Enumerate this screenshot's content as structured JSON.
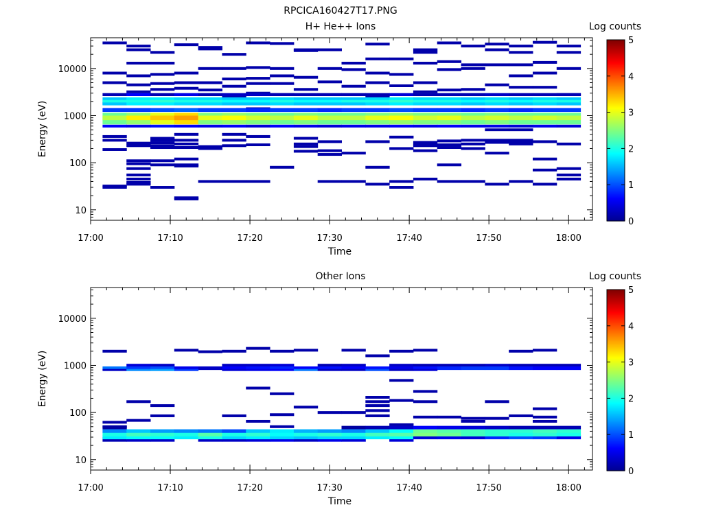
{
  "figure_title": "RPCICA160427T17.PNG",
  "colormap": [
    "#00008f",
    "#0000ff",
    "#0080ff",
    "#00ffff",
    "#80ff80",
    "#ffff00",
    "#ff8000",
    "#ff0000",
    "#800000"
  ],
  "chart_data": [
    {
      "type": "heatmap",
      "title": "H+ He++ Ions",
      "xlabel": "Time",
      "ylabel": "Energy (eV)",
      "xlim": [
        "17:00",
        "18:03"
      ],
      "ylim": [
        6,
        45000
      ],
      "yscale": "log",
      "x_ticks": [
        "17:00",
        "17:10",
        "17:20",
        "17:30",
        "17:40",
        "17:50",
        "18:00"
      ],
      "y_ticks": [
        "10",
        "100",
        "1000",
        "10000"
      ],
      "colorbar": {
        "label": "Log counts",
        "range": [
          0,
          5
        ],
        "ticks": [
          "0",
          "1",
          "2",
          "3",
          "4",
          "5"
        ]
      },
      "time_columns": [
        "17:03",
        "17:06",
        "17:09",
        "17:12",
        "17:15",
        "17:18",
        "17:21",
        "17:24",
        "17:27",
        "17:30",
        "17:33",
        "17:36",
        "17:39",
        "17:42",
        "17:45",
        "17:48",
        "17:51",
        "17:54",
        "17:57",
        "18:00"
      ],
      "bands": [
        {
          "e": [
            650,
            1150
          ],
          "v": [
            2.4,
            2.6,
            3.0,
            3.3,
            2.5,
            2.6,
            2.5,
            2.4,
            2.5,
            2.4,
            2.4,
            2.5,
            2.6,
            2.5,
            2.5,
            2.4,
            2.5,
            2.4,
            2.4,
            2.4
          ]
        },
        {
          "e": [
            800,
            1000
          ],
          "v": [
            2.8,
            3.2,
            3.4,
            3.6,
            3.0,
            3.1,
            2.9,
            2.8,
            3.0,
            2.8,
            2.8,
            3.0,
            3.1,
            2.9,
            3.0,
            2.8,
            2.9,
            2.8,
            2.9,
            2.8
          ]
        },
        {
          "e": [
            1200,
            1450
          ],
          "v": [
            0.9,
            0.9,
            1.0,
            1.1,
            0.9,
            0.9,
            0.8,
            0.9,
            0.9,
            0.8,
            0.9,
            0.9,
            1.0,
            0.9,
            0.9,
            0.8,
            0.9,
            0.8,
            0.9,
            0.9
          ]
        },
        {
          "e": [
            1650,
            2450
          ],
          "v": [
            1.6,
            1.8,
            1.8,
            1.7,
            1.7,
            1.6,
            1.6,
            1.7,
            1.6,
            1.6,
            1.6,
            1.7,
            1.8,
            1.7,
            1.7,
            1.6,
            1.7,
            1.6,
            1.7,
            1.6
          ]
        },
        {
          "e": [
            1900,
            2150
          ],
          "v": [
            2.0,
            2.0,
            2.1,
            2.0,
            2.0,
            1.9,
            1.9,
            2.0,
            1.9,
            1.9,
            2.0,
            2.0,
            2.1,
            2.0,
            2.0,
            1.9,
            2.0,
            1.9,
            2.0,
            2.0
          ]
        },
        {
          "e": [
            560,
            640
          ],
          "v": [
            0.6,
            0.5,
            0.7,
            0.6,
            0.5,
            0.6,
            0.4,
            0.6,
            0.5,
            0.4,
            0.5,
            0.5,
            0.6,
            0.5,
            0.6,
            0.5,
            0.5,
            0.4,
            0.5,
            0.4
          ]
        },
        {
          "e": [
            2600,
            3000
          ],
          "v": [
            0.2,
            0.6,
            0.2,
            0.5,
            0.2,
            0.3,
            0.3,
            0.2,
            0.2,
            0.2,
            0.2,
            0.2,
            0.4,
            0.2,
            0.2,
            0.2,
            0.3,
            0.2,
            0.2,
            0.2
          ]
        }
      ],
      "sparse": [
        {
          "t": 0,
          "e": [
            35000,
            8000,
            5000,
            1800,
            360,
            300,
            190,
            32,
            30
          ]
        },
        {
          "t": 1,
          "e": [
            30000,
            25000,
            13000,
            7000,
            4500,
            3200,
            260,
            230,
            110,
            95,
            75,
            55,
            45,
            38,
            35
          ]
        },
        {
          "t": 2,
          "e": [
            22000,
            13000,
            7500,
            4800,
            3600,
            330,
            300,
            265,
            230,
            210,
            110,
            90,
            30
          ]
        },
        {
          "t": 3,
          "e": [
            32000,
            8000,
            5000,
            3800,
            400,
            300,
            250,
            210,
            120,
            90,
            85,
            18,
            17
          ]
        },
        {
          "t": 4,
          "e": [
            28000,
            26000,
            10000,
            5000,
            3500,
            220,
            200,
            40
          ]
        },
        {
          "t": 5,
          "e": [
            20000,
            10000,
            6000,
            4200,
            2500,
            400,
            300,
            230,
            40
          ]
        },
        {
          "t": 6,
          "e": [
            35000,
            10500,
            6200,
            4800,
            3000,
            1400,
            360,
            240,
            40
          ]
        },
        {
          "t": 7,
          "e": [
            34000,
            10000,
            7000,
            4800,
            2800,
            80
          ]
        },
        {
          "t": 8,
          "e": [
            25000,
            24000,
            6500,
            3600,
            330,
            250,
            220,
            175
          ]
        },
        {
          "t": 9,
          "e": [
            25000,
            10000,
            5200,
            280,
            180,
            150,
            40
          ]
        },
        {
          "t": 10,
          "e": [
            13000,
            9500,
            4200,
            160,
            40
          ]
        },
        {
          "t": 11,
          "e": [
            33000,
            16000,
            8000,
            5000,
            2600,
            280,
            80,
            35
          ]
        },
        {
          "t": 12,
          "e": [
            16000,
            7500,
            4300,
            350,
            200,
            40,
            30
          ]
        },
        {
          "t": 13,
          "e": [
            25000,
            22000,
            13000,
            5000,
            3200,
            270,
            240,
            230,
            180,
            45
          ]
        },
        {
          "t": 14,
          "e": [
            35000,
            14000,
            9500,
            3500,
            290,
            240,
            210,
            90,
            40
          ]
        },
        {
          "t": 15,
          "e": [
            30000,
            12000,
            10000,
            3600,
            300,
            250,
            200,
            40
          ]
        },
        {
          "t": 16,
          "e": [
            33000,
            25000,
            12000,
            4500,
            500,
            300,
            270,
            160,
            35
          ]
        },
        {
          "t": 17,
          "e": [
            30000,
            22000,
            12000,
            7000,
            4000,
            500,
            300,
            270,
            250,
            40
          ]
        },
        {
          "t": 18,
          "e": [
            36000,
            13500,
            8000,
            4000,
            280,
            120,
            70,
            35
          ]
        },
        {
          "t": 19,
          "e": [
            30000,
            22000,
            10000,
            2800,
            250,
            75,
            55,
            45
          ]
        }
      ]
    },
    {
      "type": "heatmap",
      "title": "Other Ions",
      "xlabel": "Time",
      "ylabel": "Energy (eV)",
      "xlim": [
        "17:00",
        "18:03"
      ],
      "ylim": [
        6,
        45000
      ],
      "yscale": "log",
      "x_ticks": [
        "17:00",
        "17:10",
        "17:20",
        "17:30",
        "17:40",
        "17:50",
        "18:00"
      ],
      "y_ticks": [
        "10",
        "100",
        "1000",
        "10000"
      ],
      "colorbar": {
        "label": "Log counts",
        "range": [
          0,
          5
        ],
        "ticks": [
          "0",
          "1",
          "2",
          "3",
          "4",
          "5"
        ]
      },
      "time_columns": [
        "17:03",
        "17:06",
        "17:09",
        "17:12",
        "17:15",
        "17:18",
        "17:21",
        "17:24",
        "17:27",
        "17:30",
        "17:33",
        "17:36",
        "17:39",
        "17:42",
        "17:45",
        "17:48",
        "17:51",
        "17:54",
        "17:57",
        "18:00"
      ],
      "bands": [
        {
          "e": [
            24,
            30
          ],
          "v": [
            0.2,
            0.3,
            0.3,
            null,
            0.3,
            0.3,
            0.4,
            0.5,
            0.3,
            0.5,
            0.4,
            null,
            0.4,
            null,
            null,
            null,
            null,
            null,
            null,
            null
          ]
        },
        {
          "e": [
            27,
            33
          ],
          "v": [
            1.8,
            1.9,
            1.9,
            1.8,
            2.0,
            1.7,
            1.8,
            1.7,
            1.6,
            1.7,
            1.7,
            1.8,
            1.9,
            0.4,
            0.5,
            0.4,
            0.8,
            1.0,
            0.9,
            0.5
          ]
        },
        {
          "e": [
            31,
            38
          ],
          "v": [
            2.0,
            2.2,
            2.1,
            2.0,
            2.3,
            2.0,
            2.1,
            1.9,
            2.0,
            2.1,
            2.0,
            2.2,
            2.3,
            2.5,
            2.4,
            2.2,
            2.1,
            2.0,
            2.1,
            2.0
          ]
        },
        {
          "e": [
            37,
            44
          ],
          "v": [
            1.3,
            1.6,
            1.4,
            1.3,
            1.2,
            1.0,
            1.6,
            1.8,
            1.5,
            1.4,
            1.3,
            1.6,
            1.9,
            2.4,
            2.3,
            2.2,
            2.1,
            2.1,
            2.2,
            2.1
          ]
        },
        {
          "e": [
            44,
            52
          ],
          "v": [
            0.1,
            null,
            null,
            null,
            null,
            null,
            null,
            null,
            null,
            null,
            0.1,
            0.2,
            0.3,
            0.6,
            0.5,
            0.4,
            0.3,
            0.2,
            0.2,
            0.2
          ]
        },
        {
          "e": [
            800,
            950
          ],
          "v": [
            1.2,
            0.9,
            1.0,
            0.5,
            0.3,
            0.6,
            0.7,
            0.8,
            0.6,
            0.7,
            0.6,
            0.7,
            0.5,
            0.7,
            0.8,
            0.9,
            0.9,
            0.7,
            0.6,
            0.6
          ]
        },
        {
          "e": [
            760,
            840
          ],
          "v": [
            0.3,
            1.3,
            1.4,
            0.9,
            null,
            0.4,
            0.5,
            0.6,
            1.2,
            0.3,
            0.3,
            1.0,
            0.3,
            0.4,
            null,
            null,
            null,
            null,
            null,
            null
          ]
        },
        {
          "e": [
            950,
            1080
          ],
          "v": [
            null,
            0.4,
            0.3,
            null,
            null,
            0.3,
            0.3,
            0.4,
            null,
            0.2,
            0.3,
            null,
            0.3,
            0.2,
            0.2,
            0.2,
            0.3,
            0.2,
            0.2,
            0.2
          ]
        }
      ],
      "sparse": [
        {
          "t": 0,
          "e": [
            2000,
            62,
            50
          ]
        },
        {
          "t": 1,
          "e": [
            170,
            68
          ]
        },
        {
          "t": 2,
          "e": [
            140,
            85
          ]
        },
        {
          "t": 3,
          "e": [
            2100
          ]
        },
        {
          "t": 4,
          "e": [
            1950
          ]
        },
        {
          "t": 5,
          "e": [
            2000,
            85
          ]
        },
        {
          "t": 6,
          "e": [
            2300,
            330,
            65
          ]
        },
        {
          "t": 7,
          "e": [
            2000,
            250,
            90,
            50
          ]
        },
        {
          "t": 8,
          "e": [
            2100,
            130
          ]
        },
        {
          "t": 9,
          "e": [
            100
          ]
        },
        {
          "t": 10,
          "e": [
            2100,
            100
          ]
        },
        {
          "t": 11,
          "e": [
            1600,
            210,
            170,
            140,
            110,
            85
          ]
        },
        {
          "t": 12,
          "e": [
            2000,
            480,
            180,
            55
          ]
        },
        {
          "t": 13,
          "e": [
            2100,
            280,
            170,
            80
          ]
        },
        {
          "t": 14,
          "e": [
            80
          ]
        },
        {
          "t": 15,
          "e": [
            75,
            65
          ]
        },
        {
          "t": 16,
          "e": [
            170,
            75
          ]
        },
        {
          "t": 17,
          "e": [
            2000,
            85
          ]
        },
        {
          "t": 18,
          "e": [
            2100,
            120,
            80,
            65
          ]
        }
      ]
    }
  ]
}
